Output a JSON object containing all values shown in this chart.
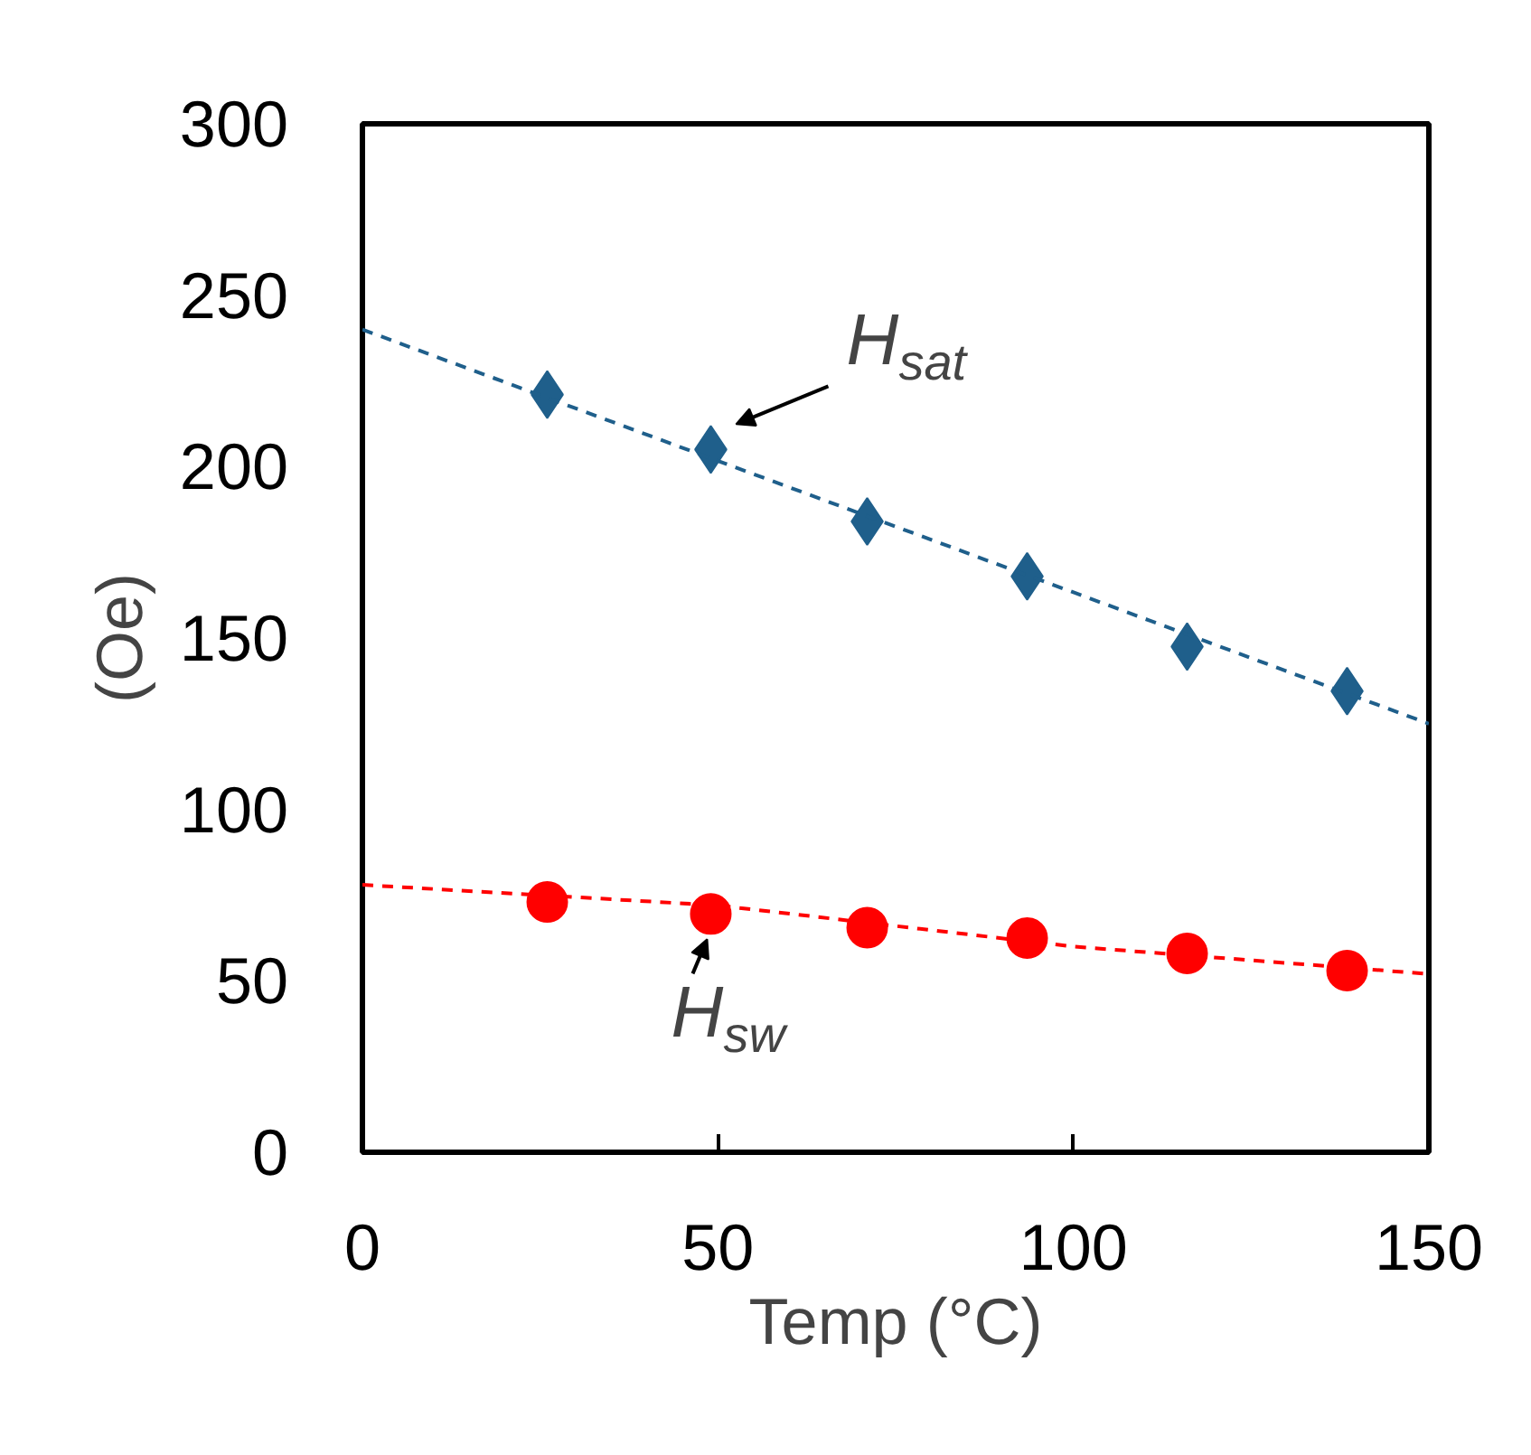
{
  "chart_data": {
    "type": "scatter",
    "xlabel": "Temp (°C)",
    "ylabel": "(Oe)",
    "xlim": [
      0,
      150
    ],
    "ylim": [
      0,
      300
    ],
    "xticks": [
      0,
      50,
      100,
      150
    ],
    "yticks": [
      0,
      50,
      100,
      150,
      200,
      250,
      300
    ],
    "grid": false,
    "legend": false,
    "series": [
      {
        "name": "H$_{sat}$",
        "color": "#1f5f8b",
        "marker": "diamond",
        "x": [
          26,
          49,
          71,
          93.5,
          116,
          138.5
        ],
        "values": [
          221,
          205,
          184,
          168,
          147.5,
          134.5
        ]
      },
      {
        "name": "H$_{sw}$",
        "color": "#ff0000",
        "marker": "circle",
        "x": [
          26,
          49,
          71,
          93.5,
          116,
          138.5
        ],
        "values": [
          73,
          69.5,
          65.5,
          62.5,
          58,
          53
        ]
      },
      {
        "type": "line",
        "color": "#1f5f8b",
        "line_style": "dashed",
        "x": [
          0,
          150
        ],
        "values": [
          240,
          125
        ]
      },
      {
        "type": "line",
        "color": "#ff0000",
        "line_style": "dashed",
        "x": [
          0,
          50,
          100,
          150
        ],
        "values": [
          78,
          72,
          60,
          52
        ]
      }
    ]
  }
}
